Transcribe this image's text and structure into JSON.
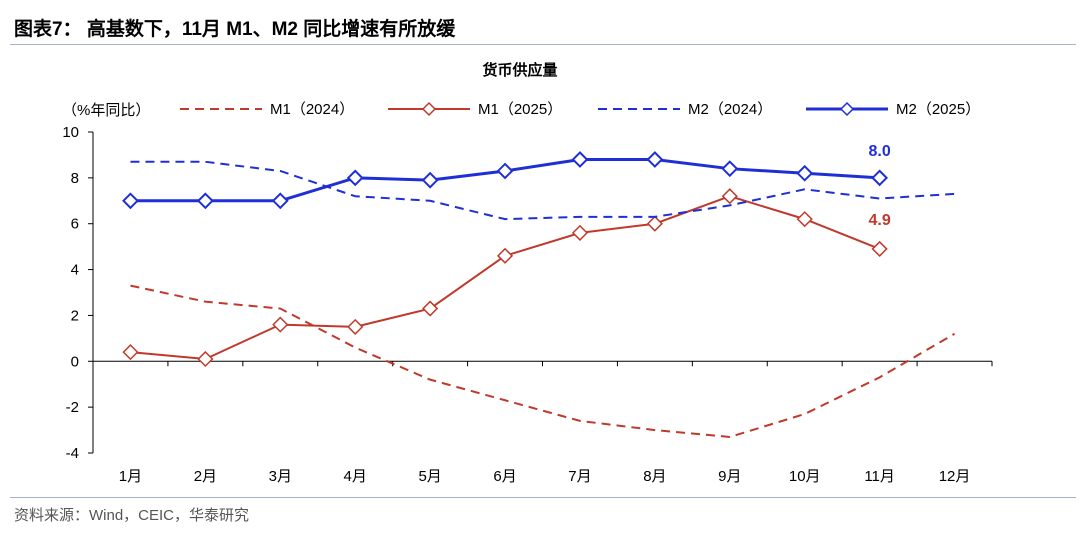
{
  "figure_title": "图表7： 高基数下，11月 M1、M2 同比增速有所放缓",
  "source": "资料来源：Wind，CEIC，华泰研究",
  "colors": {
    "m1": "#c0392b",
    "m2": "#1f2fd6",
    "rule": "#9fb4cf"
  },
  "chart_data": {
    "type": "line",
    "title": "货币供应量",
    "ylabel": "（%年同比）",
    "xlabel": "",
    "categories": [
      "1月",
      "2月",
      "3月",
      "4月",
      "5月",
      "6月",
      "7月",
      "8月",
      "9月",
      "10月",
      "11月",
      "12月"
    ],
    "ylim": [
      -4,
      10
    ],
    "yticks": [
      -4,
      -2,
      0,
      2,
      4,
      6,
      8,
      10
    ],
    "grid": false,
    "legend": "top",
    "series": [
      {
        "name": "M1（2024）",
        "style": "dashed",
        "color": "#c0392b",
        "values": [
          3.3,
          2.6,
          2.3,
          0.6,
          -0.8,
          -1.7,
          -2.6,
          -3.0,
          -3.3,
          -2.3,
          -0.7,
          1.2
        ]
      },
      {
        "name": "M1（2025）",
        "style": "solid-marker",
        "color": "#c0392b",
        "values": [
          0.4,
          0.1,
          1.6,
          1.5,
          2.3,
          4.6,
          5.6,
          6.0,
          7.2,
          6.2,
          4.9,
          null
        ]
      },
      {
        "name": "M2（2024）",
        "style": "dashed",
        "color": "#1f2fd6",
        "values": [
          8.7,
          8.7,
          8.3,
          7.2,
          7.0,
          6.2,
          6.3,
          6.3,
          6.8,
          7.5,
          7.1,
          7.3
        ]
      },
      {
        "name": "M2（2025）",
        "style": "solid-marker",
        "color": "#1f2fd6",
        "values": [
          7.0,
          7.0,
          7.0,
          8.0,
          7.9,
          8.3,
          8.8,
          8.8,
          8.4,
          8.2,
          8.0,
          null
        ]
      }
    ],
    "annotations": [
      {
        "series": "M2（2025）",
        "category": "11月",
        "text": "8.0"
      },
      {
        "series": "M1（2025）",
        "category": "11月",
        "text": "4.9"
      }
    ]
  }
}
